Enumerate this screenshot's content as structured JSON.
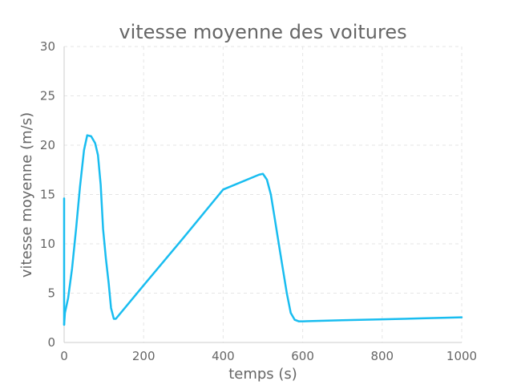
{
  "chart_data": {
    "type": "line",
    "title": "vitesse moyenne des voitures",
    "xlabel": "temps (s)",
    "ylabel": "vitesse moyenne (m/s)",
    "xlim": [
      0,
      1000
    ],
    "ylim": [
      0,
      30
    ],
    "xticks": [
      0,
      200,
      400,
      600,
      800,
      1000
    ],
    "yticks": [
      0,
      5,
      10,
      15,
      20,
      25,
      30
    ],
    "grid": true,
    "legend": "none",
    "color": "#19bdf0",
    "series": [
      {
        "segments": [
          [
            [
              0,
              14.6
            ],
            [
              0,
              1.8
            ]
          ],
          [
            [
              0,
              1.8
            ],
            [
              2,
              3.0
            ],
            [
              10,
              4.5
            ],
            [
              20,
              7.5
            ],
            [
              30,
              11.5
            ],
            [
              40,
              15.8
            ],
            [
              50,
              19.5
            ],
            [
              58,
              21.0
            ],
            [
              68,
              20.9
            ],
            [
              78,
              20.2
            ],
            [
              85,
              19.0
            ],
            [
              92,
              16.0
            ],
            [
              98,
              11.5
            ],
            [
              105,
              8.5
            ],
            [
              112,
              6.0
            ],
            [
              118,
              3.5
            ],
            [
              125,
              2.4
            ],
            [
              130,
              2.4
            ],
            [
              200,
              5.8
            ],
            [
              300,
              10.6
            ],
            [
              400,
              15.5
            ],
            [
              490,
              17.0
            ],
            [
              500,
              17.1
            ],
            [
              510,
              16.5
            ],
            [
              520,
              15.0
            ],
            [
              530,
              12.5
            ],
            [
              540,
              10.0
            ],
            [
              550,
              7.5
            ],
            [
              560,
              5.0
            ],
            [
              570,
              3.0
            ],
            [
              580,
              2.3
            ],
            [
              590,
              2.15
            ],
            [
              600,
              2.15
            ],
            [
              700,
              2.25
            ],
            [
              800,
              2.35
            ],
            [
              900,
              2.45
            ],
            [
              1000,
              2.55
            ]
          ]
        ]
      }
    ]
  }
}
